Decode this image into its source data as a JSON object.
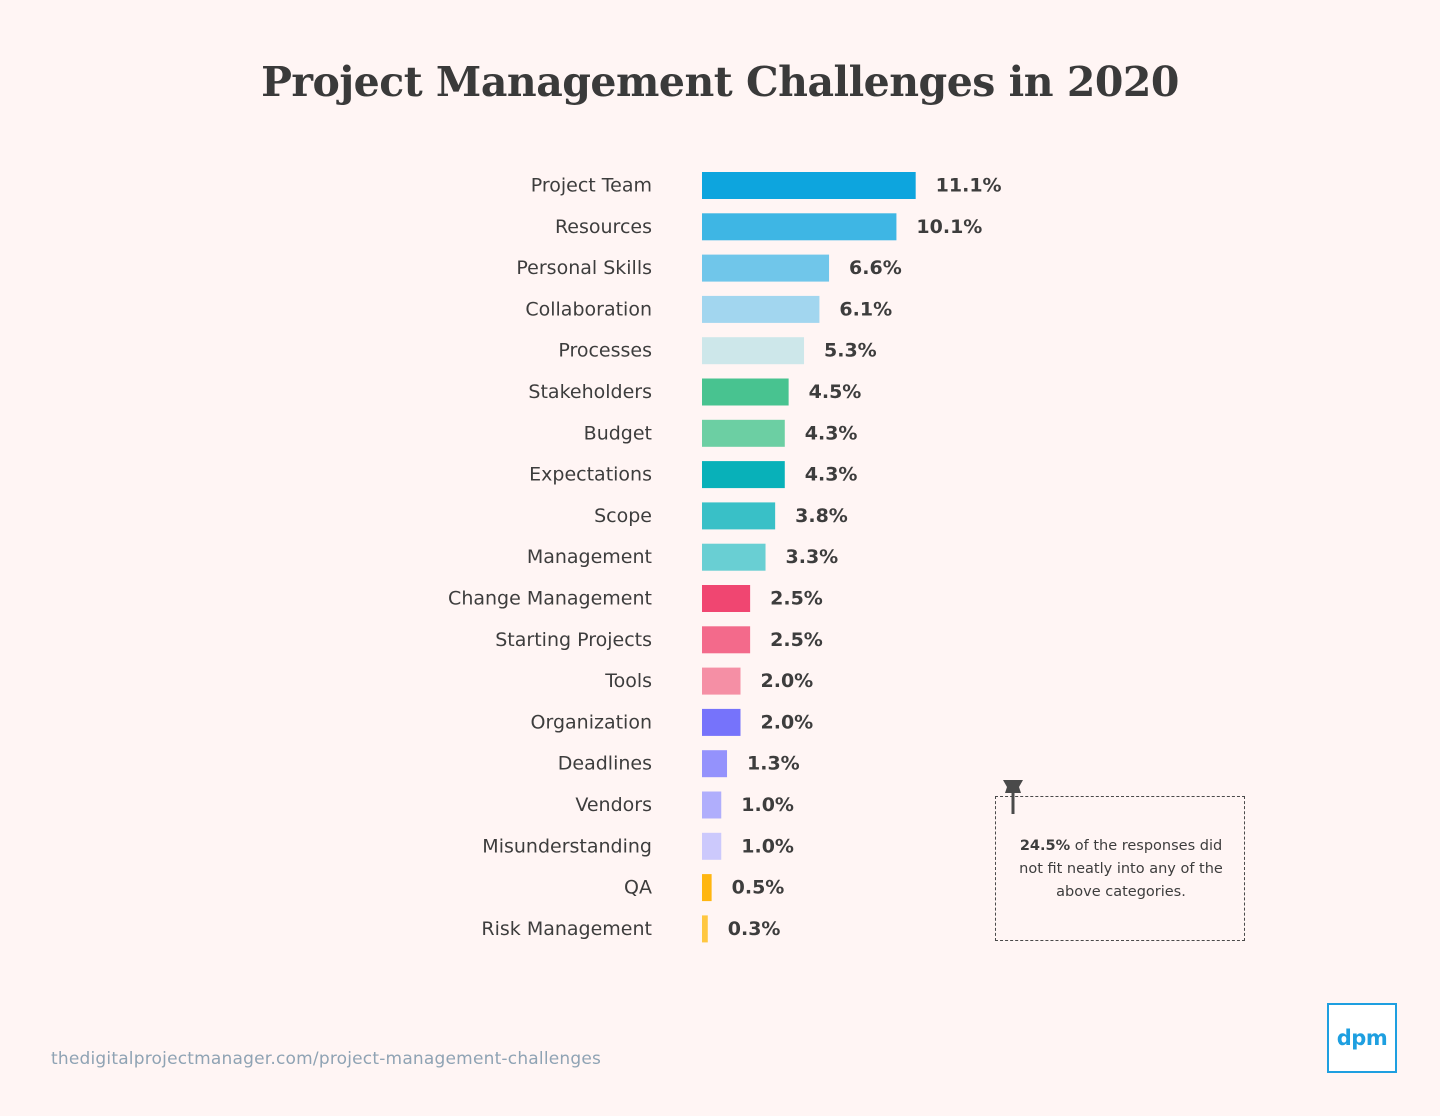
{
  "chart_data": {
    "type": "bar",
    "orientation": "horizontal",
    "title": "Project Management Challenges in 2020",
    "categories": [
      "Project Team",
      "Resources",
      "Personal Skills",
      "Collaboration",
      "Processes",
      "Stakeholders",
      "Budget",
      "Expectations",
      "Scope",
      "Management",
      "Change Management",
      "Starting Projects",
      "Tools",
      "Organization",
      "Deadlines",
      "Vendors",
      "Misunderstanding",
      "QA",
      "Risk Management"
    ],
    "values": [
      11.1,
      10.1,
      6.6,
      6.1,
      5.3,
      4.5,
      4.3,
      4.3,
      3.8,
      3.3,
      2.5,
      2.5,
      2.0,
      2.0,
      1.3,
      1.0,
      1.0,
      0.5,
      0.3
    ],
    "value_labels": [
      "11.1%",
      "10.1%",
      "6.6%",
      "6.1%",
      "5.3%",
      "4.5%",
      "4.3%",
      "4.3%",
      "3.8%",
      "3.3%",
      "2.5%",
      "2.5%",
      "2.0%",
      "2.0%",
      "1.3%",
      "1.0%",
      "1.0%",
      "0.5%",
      "0.3%"
    ],
    "colors": [
      "#0da5de",
      "#3eb6e4",
      "#70c6ea",
      "#a2d6ef",
      "#cde7ea",
      "#48c390",
      "#6ccfa3",
      "#08b1b9",
      "#39c0c7",
      "#69cfd3",
      "#f04671",
      "#f36a8b",
      "#f58fa5",
      "#7673fb",
      "#9492fc",
      "#b0aefc",
      "#ccc9fc",
      "#ffb610",
      "#ffc740"
    ],
    "xlabel": "",
    "ylabel": "",
    "grid": false,
    "legend": "none"
  },
  "note": {
    "highlight": "24.5%",
    "text": " of the responses did not fit neatly into any of the above categories."
  },
  "footer": {
    "source": "thedigitalprojectmanager.com/project-management-challenges",
    "logo": "dpm"
  },
  "icons": {
    "pin": "pushpin-icon"
  }
}
